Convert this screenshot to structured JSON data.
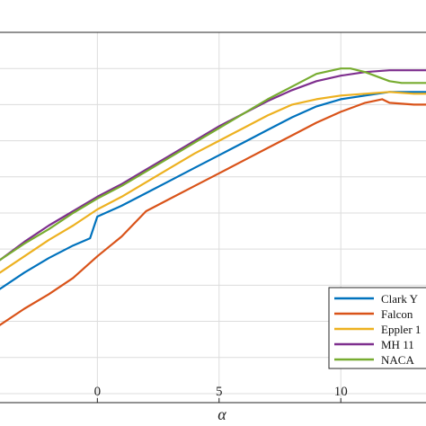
{
  "chart_data": {
    "type": "line",
    "xlabel": "α",
    "xlim": [
      -4,
      13.5
    ],
    "ylim": [
      -0.45,
      1.6
    ],
    "xticks": [
      0,
      5,
      10
    ],
    "xtick_labels": [
      "0",
      "5",
      "10"
    ],
    "yticks": [
      -0.4,
      -0.2,
      0,
      0.2,
      0.4,
      0.6,
      0.8,
      1.0,
      1.2,
      1.4
    ],
    "grid": true,
    "legend_position": "bottom-right",
    "series": [
      {
        "name": "Clark Y",
        "color": "#0072BD",
        "x": [
          -4.5,
          -4,
          -3,
          -2,
          -1,
          -0.3,
          0,
          1,
          2,
          3,
          4,
          5,
          6,
          7,
          8,
          9,
          10,
          11,
          12,
          13,
          13.5
        ],
        "y": [
          0.13,
          0.18,
          0.27,
          0.35,
          0.42,
          0.46,
          0.58,
          0.64,
          0.71,
          0.78,
          0.85,
          0.92,
          0.99,
          1.06,
          1.13,
          1.19,
          1.23,
          1.25,
          1.27,
          1.27,
          1.27
        ]
      },
      {
        "name": "Falcon",
        "color": "#D95319",
        "x": [
          -4.5,
          -4,
          -3,
          -2,
          -1,
          0,
          1,
          2,
          3,
          4,
          5,
          6,
          7,
          8,
          9,
          10,
          11,
          11.7,
          12,
          13,
          13.5
        ],
        "y": [
          -0.06,
          -0.02,
          0.07,
          0.15,
          0.24,
          0.36,
          0.47,
          0.61,
          0.68,
          0.75,
          0.82,
          0.89,
          0.96,
          1.03,
          1.1,
          1.16,
          1.21,
          1.23,
          1.21,
          1.2,
          1.2
        ]
      },
      {
        "name": "Eppler 1",
        "color": "#EDB120",
        "x": [
          -4.5,
          -4,
          -3,
          -2,
          -1,
          0,
          1,
          2,
          3,
          4,
          5,
          6,
          7,
          8,
          9,
          10,
          11,
          12,
          13,
          13.5
        ],
        "y": [
          0.22,
          0.27,
          0.36,
          0.45,
          0.53,
          0.62,
          0.69,
          0.77,
          0.85,
          0.93,
          1.0,
          1.07,
          1.14,
          1.2,
          1.23,
          1.25,
          1.26,
          1.27,
          1.26,
          1.26
        ]
      },
      {
        "name": "MH 11",
        "color": "#7E2F8E",
        "x": [
          -4.5,
          -4,
          -3,
          -2,
          -1,
          0,
          1,
          2,
          3,
          4,
          5,
          6,
          7,
          8,
          9,
          10,
          11,
          12,
          13,
          13.5
        ],
        "y": [
          0.28,
          0.34,
          0.44,
          0.53,
          0.61,
          0.69,
          0.76,
          0.84,
          0.92,
          1.0,
          1.08,
          1.15,
          1.22,
          1.28,
          1.33,
          1.36,
          1.38,
          1.39,
          1.39,
          1.39
        ]
      },
      {
        "name": "NACA",
        "color": "#77AC30",
        "x": [
          -4.5,
          -4,
          -3,
          -2,
          -1,
          0,
          1,
          2,
          3,
          4,
          5,
          6,
          7,
          8,
          9,
          10,
          10.4,
          11,
          12,
          12.5,
          13.5
        ],
        "y": [
          0.29,
          0.34,
          0.43,
          0.51,
          0.6,
          0.68,
          0.75,
          0.83,
          0.91,
          0.99,
          1.07,
          1.15,
          1.23,
          1.3,
          1.37,
          1.4,
          1.4,
          1.38,
          1.33,
          1.32,
          1.32
        ]
      }
    ]
  }
}
